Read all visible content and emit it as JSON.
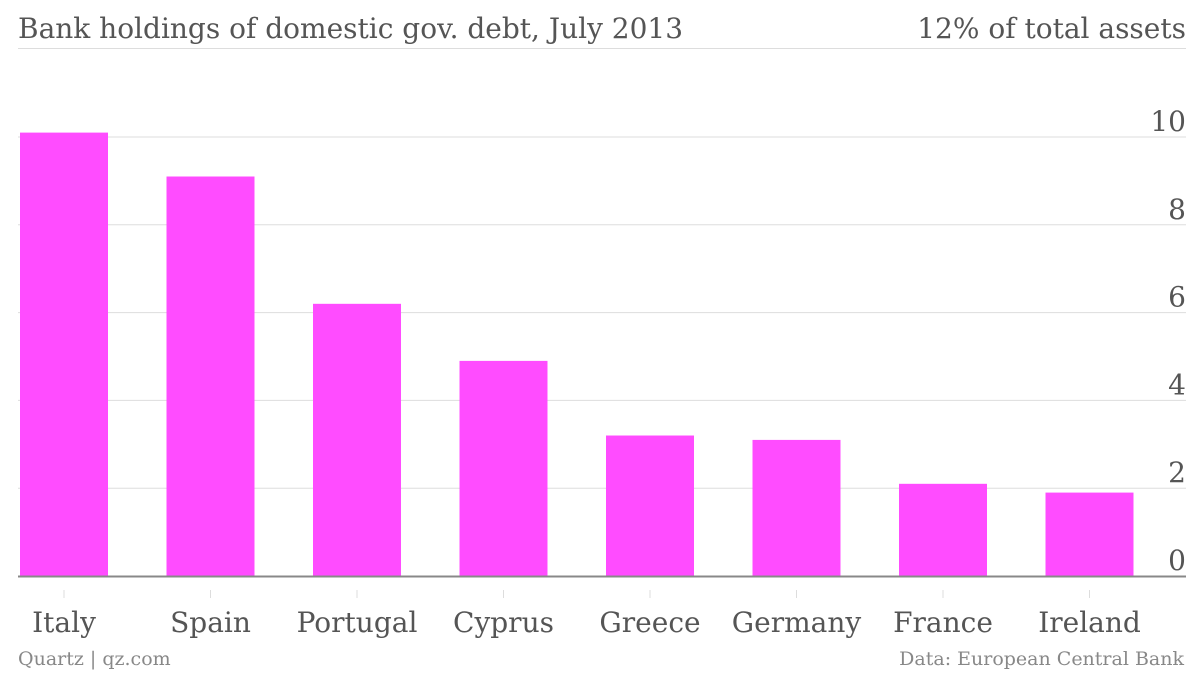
{
  "header": {
    "title": "Bank holdings of domestic gov. debt, July 2013",
    "unit_label": "12% of total assets"
  },
  "footer": {
    "credit": "Quartz | qz.com",
    "source": "Data: European Central Bank"
  },
  "colors": {
    "bar": "#ff4cff",
    "grid": "#dddddd",
    "axis": "#888888",
    "text": "#555555"
  },
  "chart_data": {
    "type": "bar",
    "categories": [
      "Italy",
      "Spain",
      "Portugal",
      "Cyprus",
      "Greece",
      "Germany",
      "France",
      "Ireland"
    ],
    "values": [
      10.1,
      9.1,
      6.2,
      4.9,
      3.2,
      3.1,
      2.1,
      1.9
    ],
    "ylim": [
      0,
      10
    ],
    "yticks": [
      0,
      2,
      4,
      6,
      8,
      10
    ],
    "grid": true,
    "y_axis_side": "right",
    "legend": "none"
  }
}
